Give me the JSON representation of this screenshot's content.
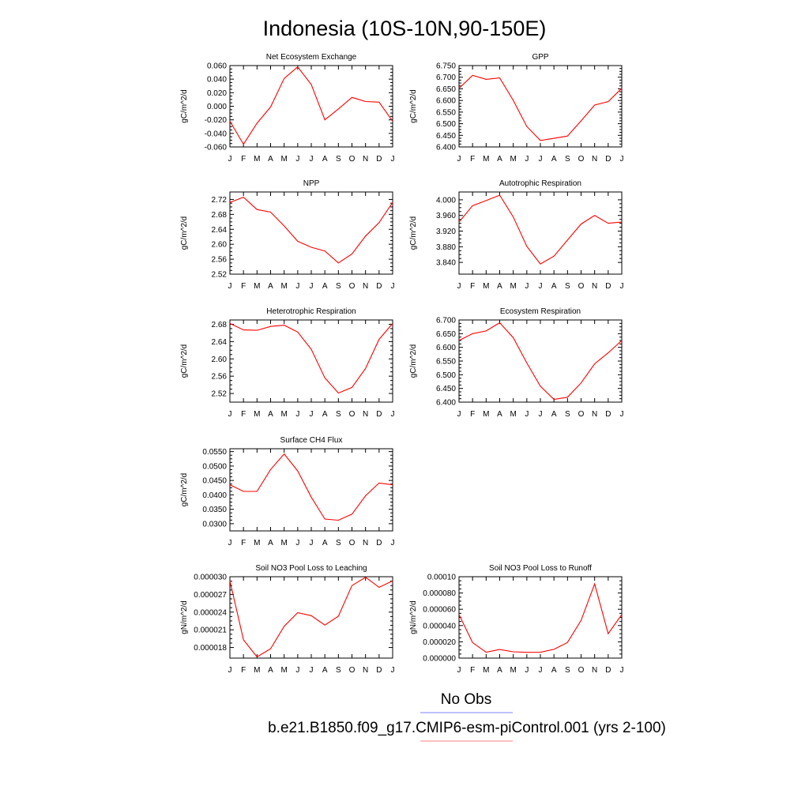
{
  "figure": {
    "title": "Indonesia (10S-10N,90-150E)",
    "legend": [
      {
        "label": "No Obs",
        "color": "#8080ff"
      },
      {
        "label": "b.e21.B1850.f09_g17.CMIP6-esm-piControl.001 (yrs 2-100)",
        "color": "#ff8080"
      }
    ],
    "line_color": "#ff0000"
  },
  "chart_data": [
    {
      "type": "line",
      "title": "Net Ecosystem Exchange",
      "ylabel": "gC/m^2/d",
      "x": [
        "J",
        "F",
        "M",
        "A",
        "M",
        "J",
        "J",
        "A",
        "S",
        "O",
        "N",
        "D",
        "J"
      ],
      "series": [
        {
          "values": [
            -0.022,
            -0.056,
            -0.025,
            -0.001,
            0.041,
            0.058,
            0.032,
            -0.02,
            -0.004,
            0.013,
            0.007,
            0.006,
            -0.022
          ]
        }
      ],
      "ylim": [
        -0.06,
        0.06
      ],
      "yticks": [
        -0.06,
        -0.04,
        -0.02,
        0.0,
        0.02,
        0.04,
        0.06
      ],
      "yticklabels": [
        "-0.060",
        "-0.040",
        "-0.020",
        "0.000",
        "0.020",
        "0.040",
        "0.060"
      ]
    },
    {
      "type": "line",
      "title": "GPP",
      "ylabel": "gC/m^2/d",
      "x": [
        "J",
        "F",
        "M",
        "A",
        "M",
        "J",
        "J",
        "A",
        "S",
        "O",
        "N",
        "D",
        "J"
      ],
      "series": [
        {
          "values": [
            6.652,
            6.708,
            6.691,
            6.697,
            6.6,
            6.488,
            6.428,
            6.437,
            6.447,
            6.512,
            6.58,
            6.595,
            6.652
          ]
        }
      ],
      "ylim": [
        6.4,
        6.75
      ],
      "yticks": [
        6.4,
        6.45,
        6.5,
        6.55,
        6.6,
        6.65,
        6.7,
        6.75
      ],
      "yticklabels": [
        "6.400",
        "6.450",
        "6.500",
        "6.550",
        "6.600",
        "6.650",
        "6.700",
        "6.750"
      ]
    },
    {
      "type": "line",
      "title": "NPP",
      "ylabel": "gC/m^2/d",
      "x": [
        "J",
        "F",
        "M",
        "A",
        "M",
        "J",
        "J",
        "A",
        "S",
        "O",
        "N",
        "D",
        "J"
      ],
      "series": [
        {
          "values": [
            2.712,
            2.726,
            2.693,
            2.686,
            2.649,
            2.608,
            2.592,
            2.582,
            2.55,
            2.574,
            2.622,
            2.658,
            2.712
          ]
        }
      ],
      "ylim": [
        2.52,
        2.74
      ],
      "yticks": [
        2.52,
        2.56,
        2.6,
        2.64,
        2.68,
        2.72
      ],
      "yticklabels": [
        "2.52",
        "2.56",
        "2.60",
        "2.64",
        "2.68",
        "2.72"
      ]
    },
    {
      "type": "line",
      "title": "Autotrophic Respiration",
      "ylabel": "gC/m^2/d",
      "x": [
        "J",
        "F",
        "M",
        "A",
        "M",
        "J",
        "J",
        "A",
        "S",
        "O",
        "N",
        "D",
        "J"
      ],
      "series": [
        {
          "values": [
            3.943,
            3.985,
            3.998,
            4.012,
            3.956,
            3.881,
            3.836,
            3.856,
            3.897,
            3.938,
            3.96,
            3.94,
            3.943
          ]
        }
      ],
      "ylim": [
        3.81,
        4.02
      ],
      "yticks": [
        3.84,
        3.88,
        3.92,
        3.96,
        4.0
      ],
      "yticklabels": [
        "3.840",
        "3.880",
        "3.920",
        "3.960",
        "4.000"
      ]
    },
    {
      "type": "line",
      "title": "Heterotrophic Respiration",
      "ylabel": "gC/m^2/d",
      "x": [
        "J",
        "F",
        "M",
        "A",
        "M",
        "J",
        "J",
        "A",
        "S",
        "O",
        "N",
        "D",
        "J"
      ],
      "series": [
        {
          "values": [
            2.682,
            2.667,
            2.666,
            2.675,
            2.678,
            2.662,
            2.622,
            2.556,
            2.521,
            2.534,
            2.578,
            2.645,
            2.682
          ]
        }
      ],
      "ylim": [
        2.5,
        2.69
      ],
      "yticks": [
        2.52,
        2.56,
        2.6,
        2.64,
        2.68
      ],
      "yticklabels": [
        "2.52",
        "2.56",
        "2.60",
        "2.64",
        "2.68"
      ]
    },
    {
      "type": "line",
      "title": "Ecosystem Respiration",
      "ylabel": "gC/m^2/d",
      "x": [
        "J",
        "F",
        "M",
        "A",
        "M",
        "J",
        "J",
        "A",
        "S",
        "O",
        "N",
        "D",
        "J"
      ],
      "series": [
        {
          "values": [
            6.625,
            6.65,
            6.66,
            6.69,
            6.635,
            6.543,
            6.458,
            6.41,
            6.418,
            6.47,
            6.54,
            6.58,
            6.625
          ]
        }
      ],
      "ylim": [
        6.4,
        6.7
      ],
      "yticks": [
        6.4,
        6.45,
        6.5,
        6.55,
        6.6,
        6.65,
        6.7
      ],
      "yticklabels": [
        "6.400",
        "6.450",
        "6.500",
        "6.550",
        "6.600",
        "6.650",
        "6.700"
      ]
    },
    {
      "type": "line",
      "title": "Surface CH4 Flux",
      "ylabel": "gC/m^2/d",
      "x": [
        "J",
        "F",
        "M",
        "A",
        "M",
        "J",
        "J",
        "A",
        "S",
        "O",
        "N",
        "D",
        "J"
      ],
      "series": [
        {
          "values": [
            0.0435,
            0.0412,
            0.0412,
            0.0488,
            0.0542,
            0.0483,
            0.0392,
            0.0316,
            0.0312,
            0.0333,
            0.0397,
            0.0441,
            0.0435
          ]
        }
      ],
      "ylim": [
        0.0275,
        0.056
      ],
      "yticks": [
        0.03,
        0.035,
        0.04,
        0.045,
        0.05,
        0.055
      ],
      "yticklabels": [
        "0.0300",
        "0.0350",
        "0.0400",
        "0.0450",
        "0.0500",
        "0.0550"
      ]
    },
    {
      "type": "line",
      "title": "Soil NO3 Pool Loss to Leaching",
      "ylabel": "gN/m^2/d",
      "x": [
        "J",
        "F",
        "M",
        "A",
        "M",
        "J",
        "J",
        "A",
        "S",
        "O",
        "N",
        "D",
        "J"
      ],
      "series": [
        {
          "values": [
            2.93e-05,
            1.93e-05,
            1.64e-05,
            1.78e-05,
            2.16e-05,
            2.39e-05,
            2.34e-05,
            2.18e-05,
            2.33e-05,
            2.85e-05,
            2.99e-05,
            2.82e-05,
            2.93e-05
          ]
        }
      ],
      "ylim": [
        1.62e-05,
        3e-05
      ],
      "yticks": [
        1.8e-05,
        2.1e-05,
        2.4e-05,
        2.7e-05,
        3e-05
      ],
      "yticklabels": [
        "0.000018",
        "0.000021",
        "0.000024",
        "0.000027",
        "0.000030"
      ]
    },
    {
      "type": "line",
      "title": "Soil NO3 Pool Loss to Runoff",
      "ylabel": "gN/m^2/d",
      "x": [
        "J",
        "F",
        "M",
        "A",
        "M",
        "J",
        "J",
        "A",
        "S",
        "O",
        "N",
        "D",
        "J"
      ],
      "series": [
        {
          "values": [
            5.35e-05,
            1.9e-05,
            7.2e-06,
            1.06e-05,
            7.8e-06,
            7.1e-06,
            7.2e-06,
            1.08e-05,
            1.92e-05,
            4.63e-05,
            9.12e-05,
            3e-05,
            5.35e-05
          ]
        }
      ],
      "ylim": [
        0.0,
        0.0001
      ],
      "yticks": [
        0.0,
        2e-05,
        4e-05,
        6e-05,
        8e-05,
        0.0001
      ],
      "yticklabels": [
        "0.000000",
        "0.000020",
        "0.000040",
        "0.000060",
        "0.000080",
        "0.00010"
      ]
    }
  ]
}
